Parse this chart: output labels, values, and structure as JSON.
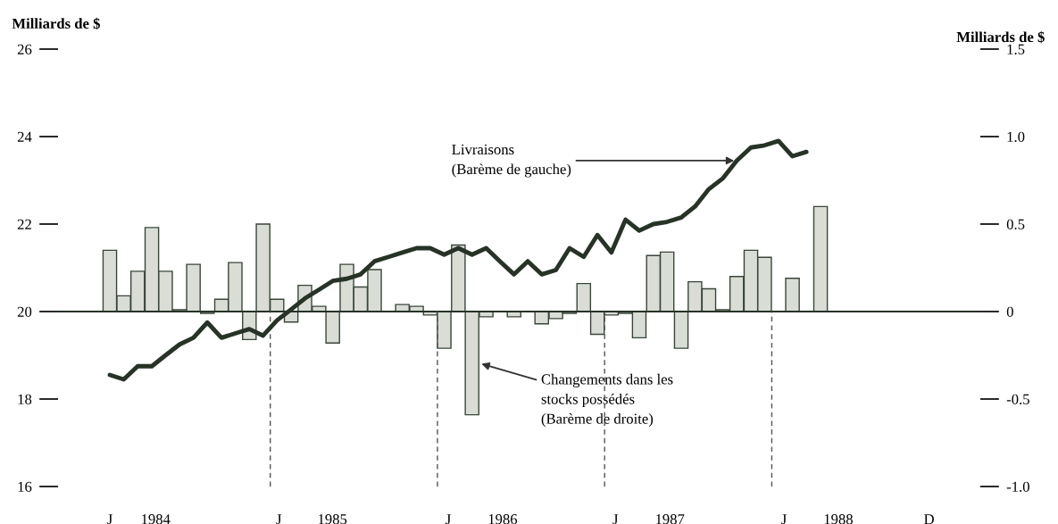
{
  "chart_data": {
    "type": "bar",
    "x": [
      "1984-01-16",
      "1984-02-15",
      "1984-03-16",
      "1984-04-16",
      "1984-05-16",
      "1984-06-16",
      "1984-07-16",
      "1984-08-16",
      "1984-09-16",
      "1984-10-16",
      "1984-11-16",
      "1984-12-16",
      "1985-01-16",
      "1985-02-15",
      "1985-03-16",
      "1985-04-16",
      "1985-05-16",
      "1985-06-16",
      "1985-07-16",
      "1985-08-16",
      "1985-09-16",
      "1985-10-16",
      "1985-11-16",
      "1985-12-16",
      "1986-01-16",
      "1986-02-15",
      "1986-03-16",
      "1986-04-16",
      "1986-05-16",
      "1986-06-16",
      "1986-07-16",
      "1986-08-16",
      "1986-09-16",
      "1986-10-16",
      "1986-11-16",
      "1986-12-16",
      "1987-01-16",
      "1987-02-15",
      "1987-03-16",
      "1987-04-16",
      "1987-05-16",
      "1987-06-16",
      "1987-07-16",
      "1987-08-16",
      "1987-09-16",
      "1987-10-16",
      "1987-11-16",
      "1987-12-16",
      "1988-01-16",
      "1988-02-15",
      "1988-03-16",
      "1988-04-16"
    ],
    "ylabel": "Milliards de $",
    "y2label": "Milliards de $",
    "series": [
      {
        "axis": "y2",
        "color": "#d9ddd6",
        "values": [
          0.35,
          0.09,
          0.23,
          0.48,
          0.23,
          0.01,
          0.27,
          -0.01,
          0.07,
          0.28,
          -0.16,
          0.5,
          0.07,
          -0.06,
          0.15,
          0.03,
          -0.18,
          0.27,
          0.14,
          0.24,
          0,
          0.04,
          0.03,
          -0.02,
          -0.21,
          0.38,
          -0.59,
          -0.03,
          0,
          -0.03,
          0,
          -0.07,
          -0.04,
          -0.01,
          0.16,
          -0.13,
          -0.02,
          -0.01,
          -0.15,
          0.32,
          0.34,
          -0.21,
          0.17,
          0.13,
          0.01,
          0.2,
          0.35,
          0.31,
          0,
          0.19,
          0,
          0.6
        ]
      },
      {
        "type": "line",
        "color": "#263326",
        "x": [
          "1984-01-16",
          "1984-02-15",
          "1984-03-16",
          "1984-04-16",
          "1984-05-16",
          "1984-06-16",
          "1984-07-16",
          "1984-08-16",
          "1984-09-16",
          "1984-10-16",
          "1984-11-16",
          "1984-12-16",
          "1985-01-16",
          "1985-02-15",
          "1985-03-16",
          "1985-04-16",
          "1985-05-16",
          "1985-06-16",
          "1985-07-16",
          "1985-08-16",
          "1985-09-16",
          "1985-10-16",
          "1985-11-16",
          "1985-12-16",
          "1986-01-16",
          "1986-02-15",
          "1986-03-16",
          "1986-04-16",
          "1986-05-16",
          "1986-06-16",
          "1986-07-16",
          "1986-08-16",
          "1986-09-16",
          "1986-10-16",
          "1986-11-16",
          "1986-12-16",
          "1987-01-16",
          "1987-02-15",
          "1987-03-16",
          "1987-04-16",
          "1987-05-16",
          "1987-06-16",
          "1987-07-16",
          "1987-08-16",
          "1987-09-16",
          "1987-10-16",
          "1987-11-16",
          "1987-12-16",
          "1988-01-16",
          "1988-02-15",
          "1988-03-16"
        ],
        "values": [
          18.55,
          18.45,
          18.75,
          18.75,
          19.0,
          19.25,
          19.4,
          19.75,
          19.4,
          19.5,
          19.6,
          19.45,
          19.8,
          20.05,
          20.3,
          20.5,
          20.7,
          20.75,
          20.85,
          21.15,
          21.25,
          21.35,
          21.45,
          21.45,
          21.3,
          21.45,
          21.3,
          21.45,
          21.15,
          20.85,
          21.15,
          20.85,
          20.95,
          21.45,
          21.25,
          21.75,
          21.35,
          22.1,
          21.85,
          22.0,
          22.05,
          22.15,
          22.4,
          22.8,
          23.05,
          23.45,
          23.75,
          23.8,
          23.9,
          23.55,
          23.65
        ]
      }
    ],
    "xlim": [
      "1983-09-24",
      "1989-03-31"
    ],
    "xticks": [
      {
        "value": "1984-01-16",
        "label": "J"
      },
      {
        "value": "1984-04-24",
        "label": "1984"
      },
      {
        "value": "1985-01-20",
        "label": "J"
      },
      {
        "value": "1985-05-15",
        "label": "1985"
      },
      {
        "value": "1986-01-25",
        "label": "J"
      },
      {
        "value": "1986-05-22",
        "label": "1986"
      },
      {
        "value": "1987-01-25",
        "label": "J"
      },
      {
        "value": "1987-05-22",
        "label": "1987"
      },
      {
        "value": "1988-01-28",
        "label": "J"
      },
      {
        "value": "1988-05-25",
        "label": "1988"
      },
      {
        "value": "1988-12-10",
        "label": "D"
      }
    ],
    "ylim": [
      16,
      26
    ],
    "yticks": [
      16,
      18,
      20,
      22,
      24,
      26
    ],
    "y2lim": [
      -1.0,
      1.5
    ],
    "y2ticks": [
      1.5,
      {
        "value": 1,
        "label": "1.0"
      },
      0.5,
      0,
      -0.5,
      {
        "value": -1,
        "label": "-1.0"
      }
    ],
    "ref_lines": [
      {
        "axis": "y2",
        "value": 0,
        "color": "#263326",
        "line_style": "solid"
      },
      {
        "axis": "x",
        "value": "1985-01-01",
        "color": "#555555",
        "line_style": "dashed"
      },
      {
        "axis": "x",
        "value": "1986-01-01",
        "color": "#555555",
        "line_style": "dashed"
      },
      {
        "axis": "x",
        "value": "1987-01-01",
        "color": "#555555",
        "line_style": "dashed"
      },
      {
        "axis": "x",
        "value": "1988-01-01",
        "color": "#555555",
        "line_style": "dashed"
      }
    ],
    "annotations": [
      {
        "text": "Livraisons\n(Barème de gauche)",
        "x": "1987-10-16",
        "y": 23.45
      },
      "Changements dans les\nstocks possédés\n(Barème de droite)"
    ],
    "grid": false,
    "legend": false
  }
}
